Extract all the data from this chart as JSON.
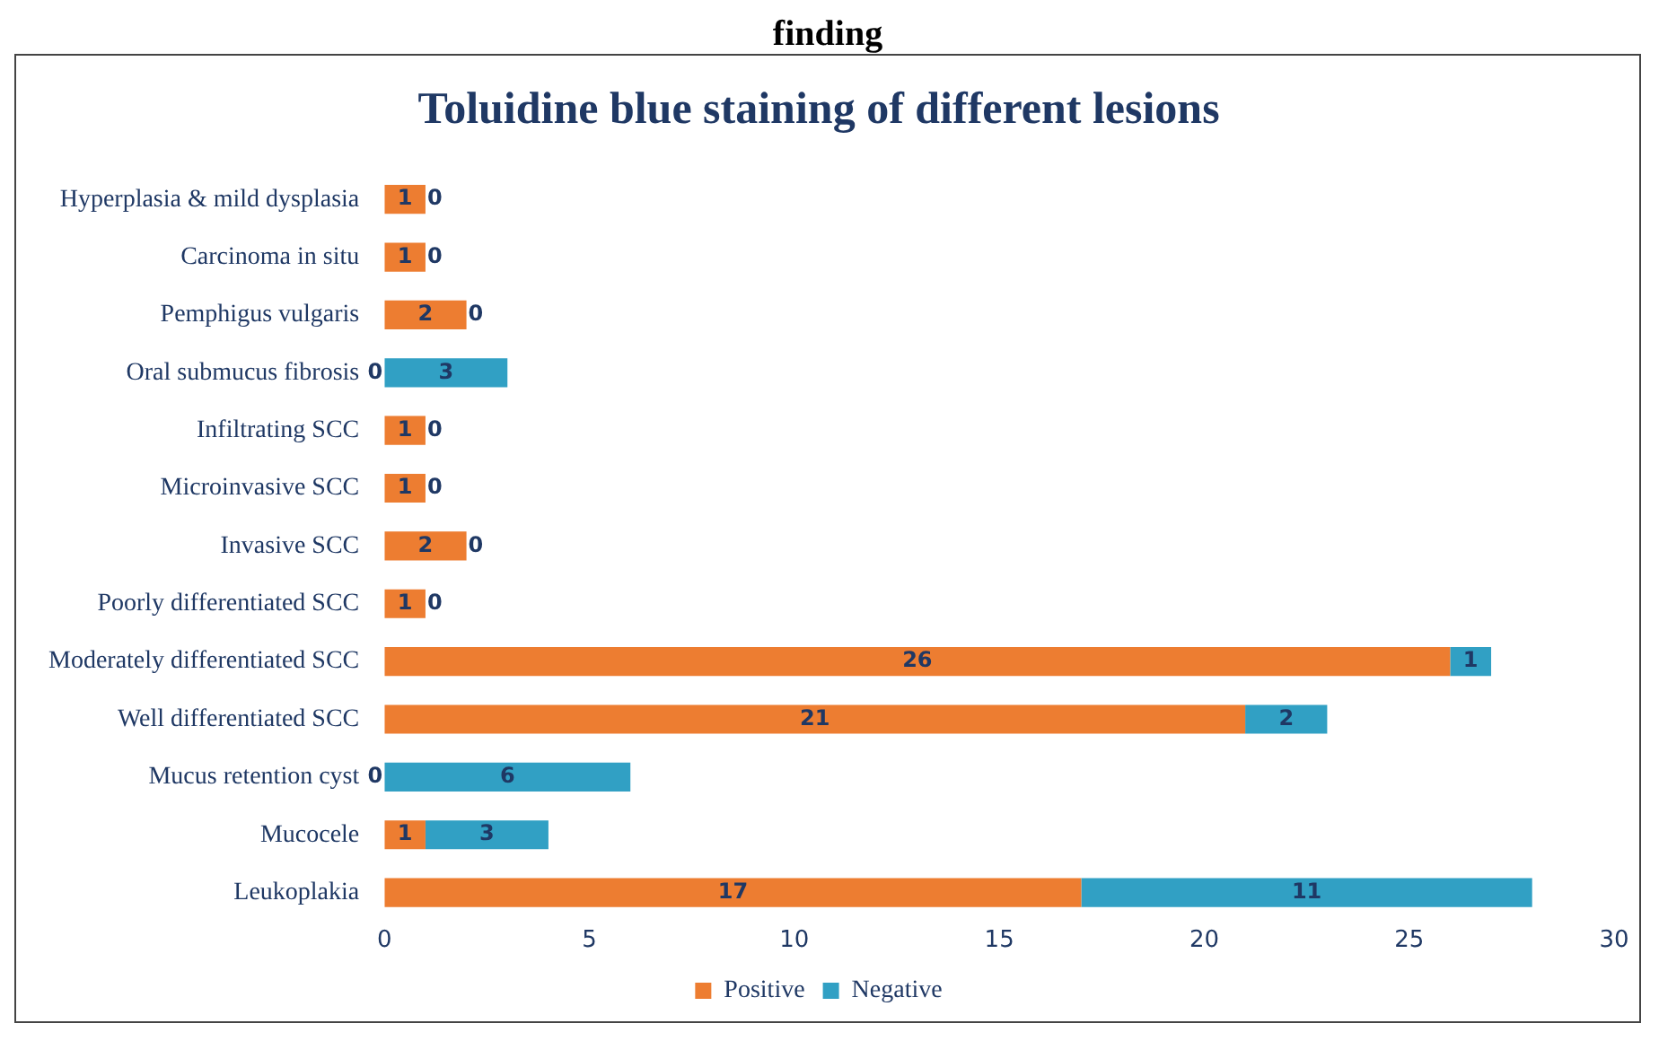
{
  "chart_data": {
    "type": "bar",
    "orientation": "horizontal",
    "stacked": true,
    "title": "Toluidine blue staining of different lesions",
    "annotations": [
      "finding",
      {
        "text": "0",
        "x": 0,
        "y": "Oral submucus fibrosis"
      },
      {
        "text": "0",
        "x": 0,
        "y": "Mucus retention cyst"
      }
    ],
    "categories": [
      "Hyperplasia & mild dysplasia",
      "Carcinoma in situ",
      "Pemphigus vulgaris",
      "Oral submucus fibrosis",
      "Infiltrating SCC",
      "Microinvasive SCC",
      "Invasive SCC",
      "Poorly differentiated SCC",
      "Moderately differentiated SCC",
      "Well differentiated SCC",
      "Mucus retention cyst",
      "Mucocele",
      "Leukoplakia"
    ],
    "series": [
      {
        "name": "Positive",
        "color": "#ed7d31",
        "values": [
          1,
          1,
          2,
          0,
          1,
          1,
          2,
          1,
          26,
          21,
          0,
          1,
          17
        ],
        "value_labels": [
          "1",
          "1",
          "2",
          null,
          "1",
          "1",
          "2",
          "1",
          "26",
          "21",
          null,
          "1",
          "17"
        ]
      },
      {
        "name": "Negative",
        "color": "#31a0c4",
        "values": [
          0,
          0,
          0,
          3,
          0,
          0,
          0,
          0,
          1,
          2,
          6,
          3,
          11
        ],
        "value_labels": [
          "0",
          "0",
          "0",
          "3",
          "0",
          "0",
          "0",
          "0",
          "1",
          "2",
          "6",
          "3",
          "11"
        ]
      }
    ],
    "xlim": [
      0,
      30
    ],
    "xticks": [
      0,
      5,
      10,
      15,
      20,
      25,
      30
    ],
    "grid": false,
    "legend": "bottom"
  }
}
